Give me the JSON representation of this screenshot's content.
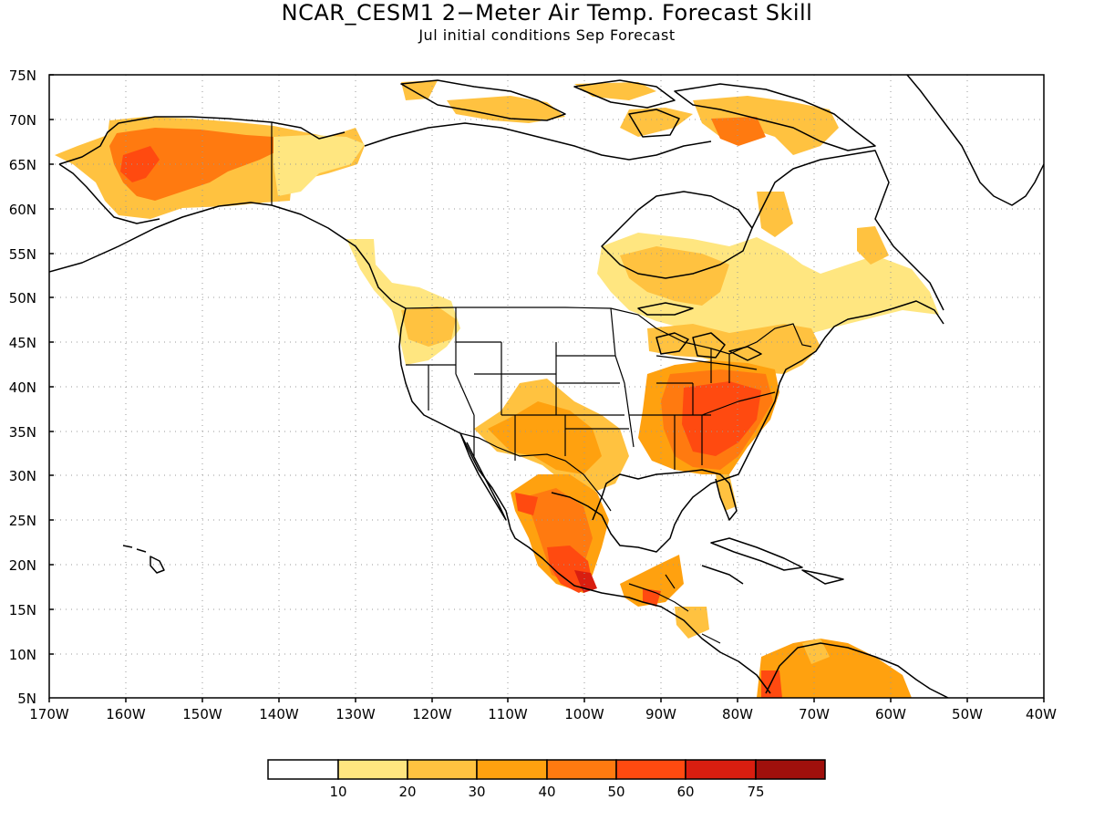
{
  "title": "NCAR_CESM1 2−Meter Air Temp. Forecast Skill",
  "subtitle": "Jul initial conditions  Sep Forecast",
  "lat_labels": [
    "75N",
    "70N",
    "65N",
    "60N",
    "55N",
    "50N",
    "45N",
    "40N",
    "35N",
    "30N",
    "25N",
    "20N",
    "15N",
    "10N",
    "5N"
  ],
  "lon_labels": [
    "170W",
    "160W",
    "150W",
    "140W",
    "130W",
    "120W",
    "110W",
    "100W",
    "90W",
    "80W",
    "70W",
    "60W",
    "50W",
    "40W"
  ],
  "colorbar": {
    "colors": [
      "#ffffff",
      "#ffe680",
      "#ffc240",
      "#ffa10f",
      "#ff7a10",
      "#ff4a10",
      "#d91e10",
      "#a0100c"
    ],
    "labels": [
      "10",
      "20",
      "30",
      "40",
      "50",
      "60",
      "75"
    ]
  },
  "colors": {
    "c10": "#ffe680",
    "c20": "#ffc240",
    "c30": "#ffa10f",
    "c40": "#ff7a10",
    "c50": "#ff4a10",
    "c60": "#d91e10",
    "c75": "#a0100c"
  }
}
